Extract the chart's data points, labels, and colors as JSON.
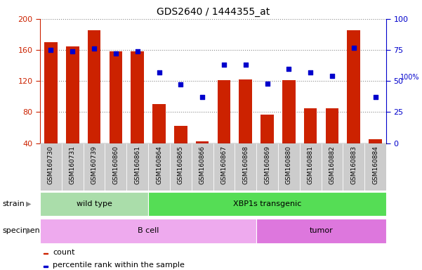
{
  "title": "GDS2640 / 1444355_at",
  "samples": [
    "GSM160730",
    "GSM160731",
    "GSM160739",
    "GSM160860",
    "GSM160861",
    "GSM160864",
    "GSM160865",
    "GSM160866",
    "GSM160867",
    "GSM160868",
    "GSM160869",
    "GSM160880",
    "GSM160881",
    "GSM160882",
    "GSM160883",
    "GSM160884"
  ],
  "counts": [
    170,
    165,
    185,
    158,
    158,
    90,
    62,
    42,
    121,
    122,
    77,
    121,
    85,
    85,
    185,
    45
  ],
  "percentiles": [
    75,
    74,
    76,
    72,
    74,
    57,
    47,
    37,
    63,
    63,
    48,
    60,
    57,
    54,
    77,
    37
  ],
  "ylim_left": [
    40,
    200
  ],
  "ylim_right": [
    0,
    100
  ],
  "yticks_left": [
    40,
    80,
    120,
    160,
    200
  ],
  "yticks_right": [
    0,
    25,
    50,
    75,
    100
  ],
  "bar_color": "#cc2200",
  "dot_color": "#0000cc",
  "strain_groups": [
    {
      "label": "wild type",
      "start": 0,
      "end": 5,
      "color": "#aaddaa"
    },
    {
      "label": "XBP1s transgenic",
      "start": 5,
      "end": 16,
      "color": "#55dd55"
    }
  ],
  "specimen_groups": [
    {
      "label": "B cell",
      "start": 0,
      "end": 10,
      "color": "#eeaaee"
    },
    {
      "label": "tumor",
      "start": 10,
      "end": 16,
      "color": "#dd77dd"
    }
  ],
  "legend_count_label": "count",
  "legend_pct_label": "percentile rank within the sample",
  "strain_label": "strain",
  "specimen_label": "specimen",
  "grid_color": "#888888",
  "background_color": "#ffffff",
  "tick_label_bg": "#cccccc",
  "left_axis_color": "#cc2200",
  "right_axis_color": "#0000cc"
}
